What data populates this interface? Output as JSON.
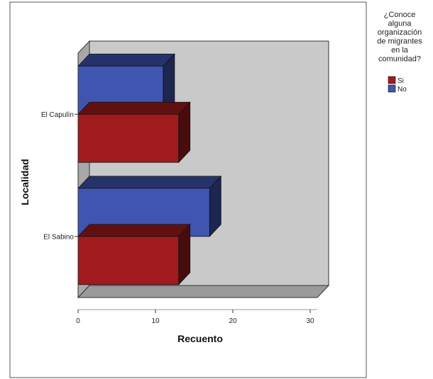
{
  "chart_data": {
    "type": "bar",
    "orientation": "horizontal",
    "style": "3d-clustered",
    "categories": [
      "El Capulín",
      "El Sabino"
    ],
    "series": [
      {
        "name": "No",
        "values": [
          11,
          17
        ],
        "color": "#3f55b0"
      },
      {
        "name": "Si",
        "values": [
          13,
          13
        ],
        "color": "#a11b1e"
      }
    ],
    "xlabel": "Recuento",
    "ylabel": "Localidad",
    "xlim": [
      0,
      30
    ],
    "xticks": [
      0,
      10,
      20,
      30
    ],
    "legend": {
      "title_lines": [
        "¿Conoce",
        "alguna",
        "organización",
        "de migrantes",
        "en la",
        "comunidad?"
      ],
      "entries": [
        "Si",
        "No"
      ],
      "placement": "top-right"
    },
    "wall_color": "#c9c9c9",
    "grid": false
  }
}
